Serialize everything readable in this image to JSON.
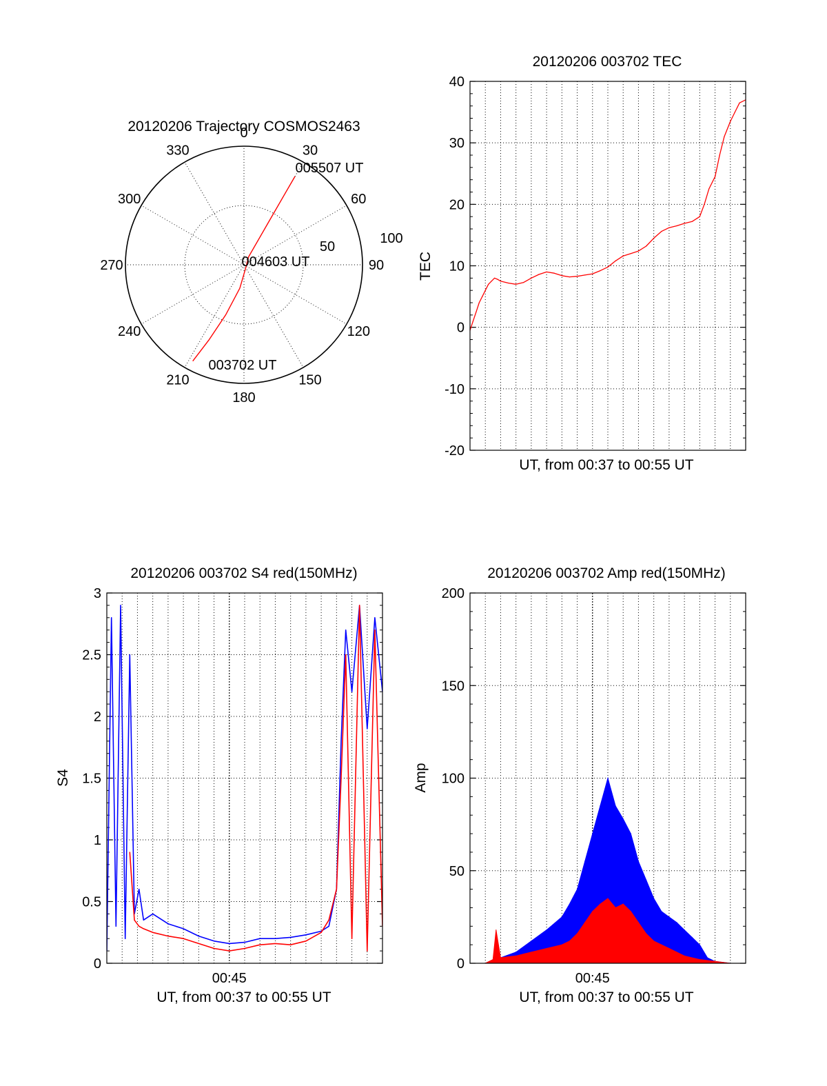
{
  "colors": {
    "red": "#ff0000",
    "blue": "#0000ff",
    "axis": "#000000"
  },
  "chart_data": [
    {
      "id": "polar",
      "type": "polar-trajectory",
      "title": "20120206 Trajectory COSMOS2463",
      "angle_labels": [
        "0",
        "30",
        "60",
        "90",
        "120",
        "150",
        "180",
        "210",
        "240",
        "270",
        "300",
        "330"
      ],
      "radial_labels": [
        "50",
        "100"
      ],
      "rlim": [
        0,
        100
      ],
      "trajectory": [
        [
          208,
          92
        ],
        [
          205,
          70
        ],
        [
          200,
          45
        ],
        [
          190,
          20
        ],
        [
          150,
          3
        ],
        [
          30,
          8
        ],
        [
          30,
          40
        ],
        [
          30,
          70
        ],
        [
          30,
          86
        ]
      ],
      "annotations": [
        {
          "text": "005507 UT",
          "azimuth": 35,
          "r": 88
        },
        {
          "text": "004603 UT",
          "azimuth": 90,
          "r": 14
        },
        {
          "text": "003702 UT",
          "azimuth": 188,
          "r": 84
        }
      ]
    },
    {
      "id": "tec",
      "type": "line",
      "title": "20120206 003702 TEC",
      "ylabel": "TEC",
      "xlabel": "UT, from 00:37 to 00:55 UT",
      "ylim": [
        -20,
        40
      ],
      "yticks": [
        "40",
        "30",
        "20",
        "10",
        "0",
        "-10",
        "-20"
      ],
      "xlim": [
        0,
        18
      ],
      "x_grid_every_min": 1,
      "x_ticks": [],
      "series": [
        {
          "color": "red",
          "x": [
            0,
            0.2,
            0.4,
            0.6,
            0.8,
            1.0,
            1.2,
            1.4,
            1.6,
            1.8,
            2.0,
            2.5,
            3,
            3.5,
            4,
            4.5,
            5,
            5.5,
            6,
            6.5,
            7,
            7.5,
            8,
            8.5,
            9,
            9.5,
            10,
            10.5,
            11,
            11.5,
            12,
            12.5,
            13,
            13.5,
            14,
            14.5,
            15,
            15.3,
            15.6,
            16,
            16.3,
            16.6,
            17,
            17.3,
            17.6,
            18
          ],
          "y": [
            -0.5,
            1,
            2.5,
            4,
            5,
            6,
            7,
            7.5,
            8,
            7.8,
            7.5,
            7.2,
            7,
            7.3,
            8,
            8.6,
            9,
            8.8,
            8.4,
            8.2,
            8.3,
            8.5,
            8.7,
            9.2,
            9.8,
            10.8,
            11.6,
            12,
            12.4,
            13.2,
            14.5,
            15.6,
            16.2,
            16.5,
            16.9,
            17.2,
            18,
            20,
            22.5,
            24.5,
            28,
            31,
            33.5,
            35,
            36.5,
            37
          ]
        }
      ]
    },
    {
      "id": "s4",
      "type": "line",
      "title": "20120206 003702 S4 red(150MHz)",
      "ylabel": "S4",
      "xlabel": "UT, from 00:37 to 00:55 UT",
      "ylim": [
        0,
        3
      ],
      "yticks": [
        "3",
        "2.5",
        "2",
        "1.5",
        "1",
        "0.5",
        "0"
      ],
      "xlim": [
        0,
        18
      ],
      "x_grid_every_min": 1,
      "x_ticks": [
        {
          "label": "00:45",
          "x": 8
        }
      ],
      "series": [
        {
          "name_hidden": "blue",
          "color": "blue",
          "x": [
            0,
            0.3,
            0.6,
            0.9,
            1.2,
            1.5,
            1.8,
            2.1,
            2.4,
            3,
            4,
            5,
            6,
            7,
            8,
            9,
            10,
            11,
            12,
            13,
            14,
            14.5,
            15,
            15.3,
            15.6,
            16,
            16.5,
            17,
            17.5,
            18
          ],
          "y": [
            0.1,
            2.8,
            0.3,
            2.9,
            0.2,
            2.5,
            0.4,
            0.6,
            0.35,
            0.4,
            0.32,
            0.28,
            0.22,
            0.18,
            0.16,
            0.17,
            0.2,
            0.2,
            0.21,
            0.23,
            0.26,
            0.3,
            0.6,
            1.8,
            2.7,
            2.2,
            2.9,
            1.9,
            2.8,
            2.2
          ]
        },
        {
          "name_hidden": "red",
          "color": "red",
          "x": [
            1.5,
            1.8,
            2.1,
            2.4,
            3,
            4,
            5,
            6,
            7,
            8,
            9,
            10,
            11,
            12,
            13,
            14,
            14.5,
            15,
            15.3,
            15.6,
            16,
            16.5,
            17,
            17.5,
            18
          ],
          "y": [
            0.9,
            0.35,
            0.3,
            0.28,
            0.25,
            0.22,
            0.2,
            0.16,
            0.12,
            0.1,
            0.12,
            0.15,
            0.16,
            0.15,
            0.18,
            0.25,
            0.35,
            0.6,
            1.5,
            2.5,
            0.2,
            2.9,
            0.1,
            2.7,
            0.3
          ]
        }
      ]
    },
    {
      "id": "amp",
      "type": "area",
      "title": "20120206 003702 Amp red(150MHz)",
      "ylabel": "Amp",
      "xlabel": "UT, from 00:37 to 00:55 UT",
      "ylim": [
        0,
        200
      ],
      "yticks": [
        "200",
        "150",
        "100",
        "50",
        "0"
      ],
      "xlim": [
        0,
        18
      ],
      "x_grid_every_min": 1,
      "x_ticks": [
        {
          "label": "00:45",
          "x": 8
        }
      ],
      "series": [
        {
          "color": "blue",
          "x": [
            0,
            1,
            1.5,
            2,
            3,
            4,
            5,
            6,
            6.5,
            7,
            7.5,
            8,
            8.5,
            9,
            9.5,
            10,
            10.5,
            11,
            11.5,
            12,
            12.5,
            13,
            13.5,
            14,
            14.5,
            15,
            15.5,
            16,
            17,
            18
          ],
          "y": [
            0,
            0,
            1,
            3,
            6,
            12,
            18,
            25,
            32,
            40,
            55,
            70,
            85,
            100,
            85,
            78,
            70,
            55,
            45,
            35,
            28,
            25,
            22,
            18,
            14,
            10,
            3,
            1,
            0,
            0
          ]
        },
        {
          "color": "red",
          "x": [
            0,
            1,
            1.5,
            1.7,
            2,
            3,
            4,
            5,
            6,
            6.5,
            7,
            7.5,
            8,
            8.5,
            9,
            9.5,
            10,
            10.5,
            11,
            11.5,
            12,
            12.5,
            13,
            13.5,
            14,
            15,
            16,
            17,
            18
          ],
          "y": [
            0,
            0,
            2,
            18,
            3,
            4,
            6,
            8,
            10,
            12,
            16,
            22,
            28,
            32,
            35,
            30,
            32,
            28,
            22,
            16,
            12,
            10,
            8,
            6,
            4,
            2,
            1,
            0,
            0
          ]
        }
      ]
    }
  ]
}
